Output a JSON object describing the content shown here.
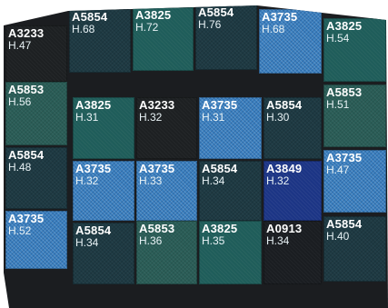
{
  "tiles": [
    {
      "code": "A3233",
      "h": "H.47"
    },
    {
      "code": "A5854",
      "h": "H.68"
    },
    {
      "code": "A3825",
      "h": "H.72"
    },
    {
      "code": "A5854",
      "h": "H.76"
    },
    {
      "code": "A3735",
      "h": "H.68"
    },
    {
      "code": "A3825",
      "h": "H.54"
    },
    {
      "code": "A5853",
      "h": "H.56"
    },
    {
      "code": "A5853",
      "h": "H.51"
    },
    {
      "code": "A3825",
      "h": "H.31"
    },
    {
      "code": "A3233",
      "h": "H.32"
    },
    {
      "code": "A3735",
      "h": "H.31"
    },
    {
      "code": "A5854",
      "h": "H.30"
    },
    {
      "code": "A5854",
      "h": "H.48"
    },
    {
      "code": "A3735",
      "h": "H.47"
    },
    {
      "code": "A3735",
      "h": "H.32"
    },
    {
      "code": "A3735",
      "h": "H.33"
    },
    {
      "code": "A5854",
      "h": "H.34"
    },
    {
      "code": "A3849",
      "h": "H.32"
    },
    {
      "code": "A3735",
      "h": "H.52"
    },
    {
      "code": "A5854",
      "h": "H.34"
    },
    {
      "code": "A5853",
      "h": "H.36"
    },
    {
      "code": "A3825",
      "h": "H.35"
    },
    {
      "code": "A0913",
      "h": "H.34"
    },
    {
      "code": "A5854",
      "h": "H.40"
    }
  ]
}
